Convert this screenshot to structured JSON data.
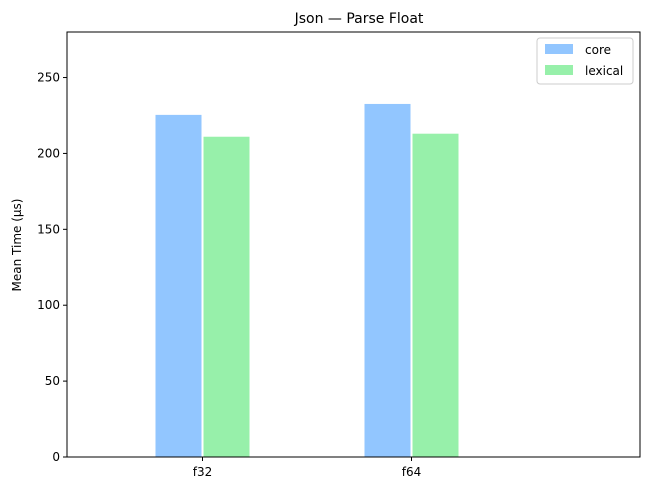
{
  "chart_data": {
    "type": "bar",
    "title": "Json — Parse Float",
    "xlabel": "",
    "ylabel": "Mean Time (µs)",
    "categories": [
      "f32",
      "f64"
    ],
    "series": [
      {
        "name": "core",
        "color": "#92c6ff",
        "values": [
          225.4,
          232.6
        ]
      },
      {
        "name": "lexical",
        "color": "#97f0aa",
        "values": [
          211.0,
          213.0
        ]
      }
    ],
    "ylim": [
      0,
      280
    ],
    "yticks": [
      0,
      50,
      100,
      150,
      200,
      250
    ],
    "grid": false,
    "legend_position": "top-right"
  }
}
